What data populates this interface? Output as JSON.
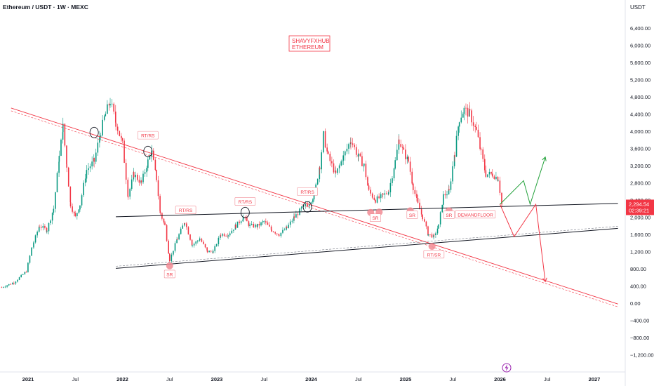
{
  "header": {
    "symbol_title": "Ethereum / USDT · 1W · MEXC"
  },
  "price_axis": {
    "currency": "USDT",
    "ticks": [
      {
        "v": 6400,
        "label": "6,400.00"
      },
      {
        "v": 6000,
        "label": "6,000.00"
      },
      {
        "v": 5600,
        "label": "5,600.00"
      },
      {
        "v": 5200,
        "label": "5,200.00"
      },
      {
        "v": 4800,
        "label": "4,800.00"
      },
      {
        "v": 4400,
        "label": "4,400.00"
      },
      {
        "v": 4000,
        "label": "4,000.00"
      },
      {
        "v": 3600,
        "label": "3,600.00"
      },
      {
        "v": 3200,
        "label": "3,200.00"
      },
      {
        "v": 2800,
        "label": "2,800.00"
      },
      {
        "v": 2400,
        "label": "2,400.00"
      },
      {
        "v": 2000,
        "label": "2,000.00"
      },
      {
        "v": 1600,
        "label": "1,600.00"
      },
      {
        "v": 1200,
        "label": "1,200.00"
      },
      {
        "v": 800,
        "label": "800.00"
      },
      {
        "v": 400,
        "label": "400.00"
      },
      {
        "v": 0,
        "label": "0.00"
      },
      {
        "v": -400,
        "label": "−400.00"
      },
      {
        "v": -800,
        "label": "−800.00"
      },
      {
        "v": -1200,
        "label": "−1,200.00"
      }
    ],
    "current_price": "2,294.54",
    "countdown": "02:39:21",
    "current_price_color": "#f23645"
  },
  "time_axis": {
    "ticks": [
      {
        "t": 2021.0,
        "label": "2021",
        "bold": true
      },
      {
        "t": 2021.5,
        "label": "Jul",
        "bold": false
      },
      {
        "t": 2022.0,
        "label": "2022",
        "bold": true
      },
      {
        "t": 2022.5,
        "label": "Jul",
        "bold": false
      },
      {
        "t": 2023.0,
        "label": "2023",
        "bold": true
      },
      {
        "t": 2023.5,
        "label": "Jul",
        "bold": false
      },
      {
        "t": 2024.0,
        "label": "2024",
        "bold": true
      },
      {
        "t": 2024.5,
        "label": "Jul",
        "bold": false
      },
      {
        "t": 2025.0,
        "label": "2025",
        "bold": true
      },
      {
        "t": 2025.5,
        "label": "Jul",
        "bold": false
      },
      {
        "t": 2026.0,
        "label": "2026",
        "bold": true
      },
      {
        "t": 2026.5,
        "label": "Jul",
        "bold": false
      },
      {
        "t": 2027.0,
        "label": "2027",
        "bold": true
      }
    ]
  },
  "watermark": {
    "line1": "SHAVYFXHUB",
    "line2": "ETHEREUM"
  },
  "annotations": [
    {
      "text": "RT/RS",
      "t": 2022.27,
      "price": 3900
    },
    {
      "text": "RT/RS",
      "t": 2022.67,
      "price": 2160
    },
    {
      "text": "RT/RS",
      "t": 2023.3,
      "price": 2360
    },
    {
      "text": "RT/RS",
      "t": 2023.96,
      "price": 2590
    },
    {
      "text": "SR",
      "t": 2022.5,
      "price": 670
    },
    {
      "text": "SR",
      "t": 2024.68,
      "price": 1980
    },
    {
      "text": "SR",
      "t": 2025.07,
      "price": 2050
    },
    {
      "text": "SR",
      "t": 2025.46,
      "price": 2050
    },
    {
      "text": "RT/SR",
      "t": 2025.3,
      "price": 1130
    },
    {
      "text": "DEMANDFLOOR",
      "t": 2025.74,
      "price": 2060
    }
  ],
  "colors": {
    "bull": "#089981",
    "bear": "#f23645",
    "resistance_line": "#f23645",
    "support_line": "#131722",
    "projection_up": "#22a13a",
    "projection_down": "#f23645"
  },
  "chart_data": {
    "type": "candlestick",
    "title": "Ethereum / USDT · 1W · MEXC",
    "x_unit": "year",
    "y_unit": "USDT",
    "xlim": [
      2020.7,
      2027.3
    ],
    "ylim": [
      -1350,
      6700
    ],
    "series": [
      {
        "kind": "ohlc_path",
        "points": [
          [
            2020.72,
            370
          ],
          [
            2020.85,
            480
          ],
          [
            2020.98,
            740
          ],
          [
            2021.04,
            1300
          ],
          [
            2021.12,
            1800
          ],
          [
            2021.2,
            1700
          ],
          [
            2021.27,
            2200
          ],
          [
            2021.33,
            3400
          ],
          [
            2021.37,
            4100
          ],
          [
            2021.41,
            3200
          ],
          [
            2021.45,
            2300
          ],
          [
            2021.5,
            2000
          ],
          [
            2021.55,
            2300
          ],
          [
            2021.62,
            3100
          ],
          [
            2021.7,
            3300
          ],
          [
            2021.77,
            4000
          ],
          [
            2021.82,
            4400
          ],
          [
            2021.87,
            4700
          ],
          [
            2021.93,
            4200
          ],
          [
            2022.0,
            3700
          ],
          [
            2022.06,
            2500
          ],
          [
            2022.12,
            3000
          ],
          [
            2022.2,
            2800
          ],
          [
            2022.27,
            3300
          ],
          [
            2022.31,
            3500
          ],
          [
            2022.36,
            2900
          ],
          [
            2022.4,
            2100
          ],
          [
            2022.45,
            1800
          ],
          [
            2022.5,
            1000
          ],
          [
            2022.58,
            1500
          ],
          [
            2022.66,
            1900
          ],
          [
            2022.74,
            1350
          ],
          [
            2022.82,
            1500
          ],
          [
            2022.9,
            1200
          ],
          [
            2022.96,
            1200
          ],
          [
            2023.04,
            1600
          ],
          [
            2023.12,
            1600
          ],
          [
            2023.2,
            1800
          ],
          [
            2023.28,
            2000
          ],
          [
            2023.35,
            1800
          ],
          [
            2023.43,
            1800
          ],
          [
            2023.5,
            1900
          ],
          [
            2023.58,
            1700
          ],
          [
            2023.66,
            1600
          ],
          [
            2023.74,
            1750
          ],
          [
            2023.82,
            2000
          ],
          [
            2023.9,
            2200
          ],
          [
            2023.96,
            2300
          ],
          [
            2024.03,
            2500
          ],
          [
            2024.09,
            3200
          ],
          [
            2024.13,
            3900
          ],
          [
            2024.18,
            3400
          ],
          [
            2024.26,
            3000
          ],
          [
            2024.34,
            3400
          ],
          [
            2024.42,
            3800
          ],
          [
            2024.5,
            3400
          ],
          [
            2024.56,
            3200
          ],
          [
            2024.61,
            2600
          ],
          [
            2024.68,
            2400
          ],
          [
            2024.76,
            2500
          ],
          [
            2024.82,
            2600
          ],
          [
            2024.89,
            3300
          ],
          [
            2024.93,
            3800
          ],
          [
            2024.98,
            3500
          ],
          [
            2025.03,
            3300
          ],
          [
            2025.08,
            2700
          ],
          [
            2025.13,
            2300
          ],
          [
            2025.18,
            2000
          ],
          [
            2025.24,
            1600
          ],
          [
            2025.3,
            1550
          ],
          [
            2025.35,
            1800
          ],
          [
            2025.4,
            2500
          ],
          [
            2025.46,
            2600
          ],
          [
            2025.52,
            3500
          ],
          [
            2025.57,
            4300
          ],
          [
            2025.62,
            4500
          ],
          [
            2025.68,
            4400
          ],
          [
            2025.75,
            4000
          ],
          [
            2025.8,
            3500
          ],
          [
            2025.85,
            3000
          ],
          [
            2025.92,
            3000
          ],
          [
            2025.98,
            2900
          ],
          [
            2026.02,
            2294.54
          ]
        ]
      }
    ],
    "resistance_trendline": {
      "from": [
        2020.82,
        4540
      ],
      "to": [
        2027.25,
        -20
      ]
    },
    "support_trendline_upper": {
      "from": [
        2021.93,
        2010
      ],
      "to": [
        2027.25,
        2320
      ]
    },
    "support_trendline_lower": {
      "from": [
        2021.93,
        810
      ],
      "to": [
        2027.25,
        1740
      ]
    },
    "projection_bullish": {
      "points": [
        [
          2026.0,
          2300
        ],
        [
          2026.25,
          2850
        ],
        [
          2026.32,
          2300
        ],
        [
          2026.48,
          3400
        ]
      ]
    },
    "projection_bearish": {
      "points": [
        [
          2026.0,
          2300
        ],
        [
          2026.15,
          1550
        ],
        [
          2026.38,
          2300
        ],
        [
          2026.48,
          500
        ]
      ]
    },
    "marked_circles": [
      [
        2021.7,
        3970
      ],
      [
        2022.27,
        3530
      ],
      [
        2023.3,
        2110
      ],
      [
        2023.96,
        2240
      ]
    ],
    "marked_dots": [
      [
        2022.5,
        870
      ],
      [
        2024.63,
        2110
      ],
      [
        2024.72,
        2120
      ],
      [
        2025.05,
        2150
      ],
      [
        2025.46,
        2150
      ],
      [
        2025.28,
        1320
      ]
    ]
  }
}
